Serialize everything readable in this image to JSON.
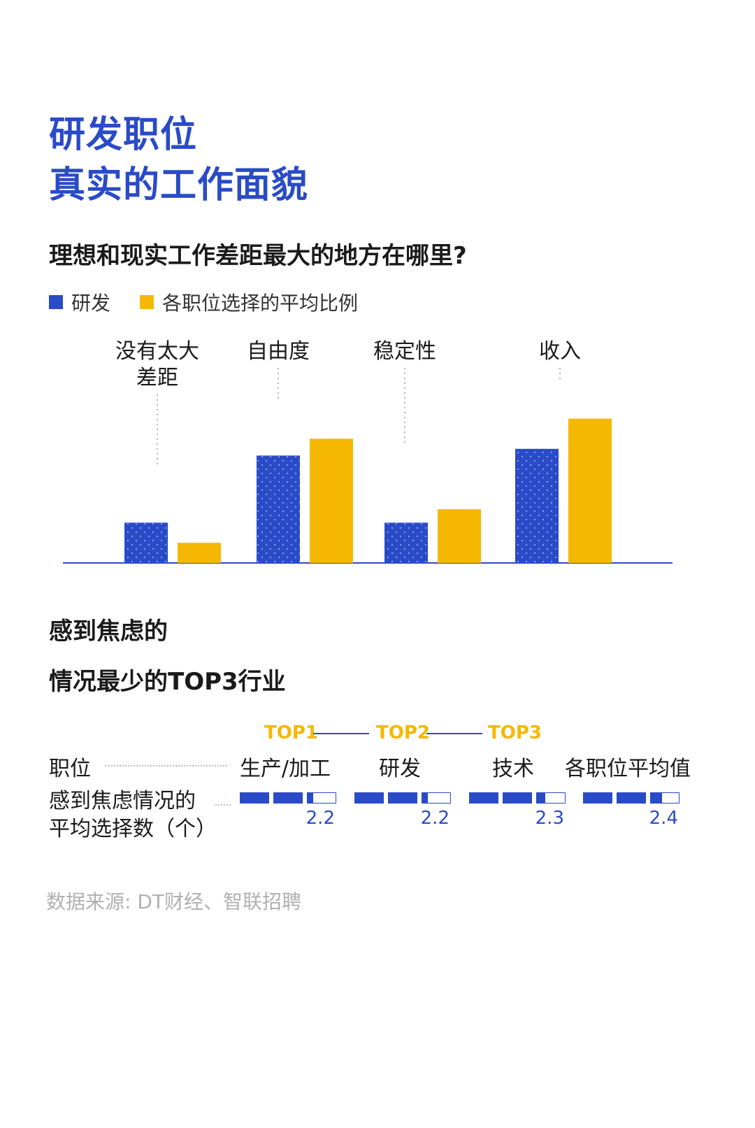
{
  "header": {
    "title_line1": "研发职位",
    "title_line2": "真实的工作面貌"
  },
  "chart_data": {
    "type": "bar",
    "title": "理想和现实工作差距最大的地方在哪里?",
    "categories": [
      "没有太大\n差距",
      "自由度",
      "稳定性",
      "收入"
    ],
    "series": [
      {
        "name": "研发",
        "color": "#2a4bc7",
        "values": [
          12,
          32,
          12,
          34
        ]
      },
      {
        "name": "各职位选择的平均比例",
        "color": "#f5b800",
        "values": [
          6,
          37,
          16,
          43
        ]
      }
    ],
    "ylim": [
      0,
      50
    ],
    "xlabel": "",
    "ylabel": "",
    "grid": false,
    "legend_position": "top-left"
  },
  "anxiety": {
    "title_line1": "感到焦虑的",
    "title_line2": "情况最少的TOP3行业",
    "top_labels": [
      "TOP1",
      "TOP2",
      "TOP3"
    ],
    "row1_label": "职位",
    "row2_label_line1": "感到焦虑情况的",
    "row2_label_line2": "平均选择数（个）",
    "columns": [
      {
        "name": "生产/加工",
        "value": 2.2,
        "value_text": "2.2"
      },
      {
        "name": "研发",
        "value": 2.2,
        "value_text": "2.2"
      },
      {
        "name": "技术",
        "value": 2.3,
        "value_text": "2.3"
      },
      {
        "name": "各职位平均值",
        "value": 2.4,
        "value_text": "2.4"
      }
    ]
  },
  "footer": {
    "source": "数据来源: DT财经、智联招聘"
  },
  "colors": {
    "blue": "#2a4bc7",
    "yellow": "#f5b800"
  }
}
